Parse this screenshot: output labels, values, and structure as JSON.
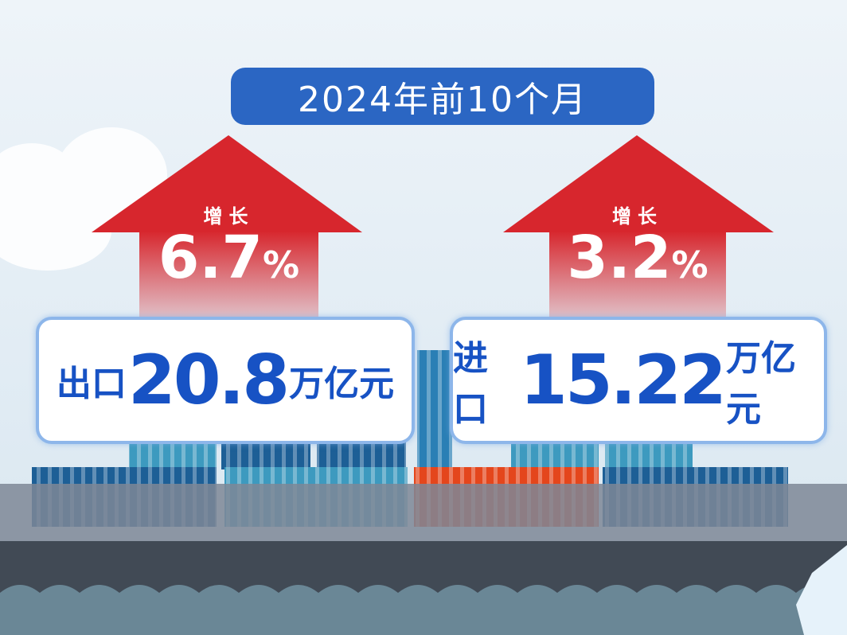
{
  "title": "2024年前10个月",
  "export": {
    "growth_label": "增长",
    "growth_value": "6.7",
    "growth_unit": "%",
    "label": "出口",
    "value": "20.8",
    "unit": "万亿元"
  },
  "import": {
    "growth_label": "增长",
    "growth_value": "3.2",
    "growth_unit": "%",
    "label": "进口",
    "value": "15.22",
    "unit": "万亿元"
  },
  "colors": {
    "title_bg": "#2b66c3",
    "arrow": "#d7262d",
    "text_blue": "#1752c4",
    "container_orange": "#e4461c",
    "container_dark": "#1d5f96",
    "container_teal": "#3d9abf"
  }
}
